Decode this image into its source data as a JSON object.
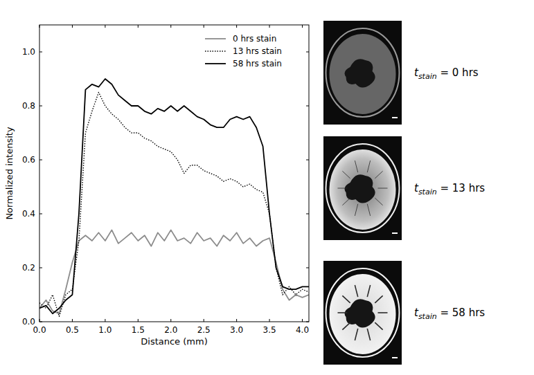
{
  "chart_data": {
    "type": "line",
    "x_label": "Distance (mm)",
    "y_label": "Normalized intensity",
    "x": [
      0.0,
      0.1,
      0.2,
      0.3,
      0.4,
      0.5,
      0.6,
      0.7,
      0.8,
      0.9,
      1.0,
      1.1,
      1.2,
      1.3,
      1.4,
      1.5,
      1.6,
      1.7,
      1.8,
      1.9,
      2.0,
      2.1,
      2.2,
      2.3,
      2.4,
      2.5,
      2.6,
      2.7,
      2.8,
      2.9,
      3.0,
      3.1,
      3.2,
      3.3,
      3.4,
      3.5,
      3.6,
      3.7,
      3.8,
      3.9,
      4.0,
      4.1
    ],
    "series": [
      {
        "name": "0 hrs stain",
        "color": "#8c8c8c",
        "line_style": "solid",
        "values": [
          0.05,
          0.08,
          0.04,
          0.03,
          0.12,
          0.22,
          0.3,
          0.32,
          0.3,
          0.33,
          0.3,
          0.34,
          0.29,
          0.31,
          0.33,
          0.3,
          0.32,
          0.28,
          0.33,
          0.3,
          0.34,
          0.3,
          0.31,
          0.29,
          0.33,
          0.3,
          0.31,
          0.28,
          0.32,
          0.3,
          0.33,
          0.29,
          0.31,
          0.28,
          0.3,
          0.31,
          0.22,
          0.12,
          0.08,
          0.1,
          0.09,
          0.1
        ]
      },
      {
        "name": "13 hrs stain",
        "color": "#000000",
        "line_style": "dotted",
        "values": [
          0.07,
          0.05,
          0.1,
          0.02,
          0.1,
          0.12,
          0.3,
          0.7,
          0.78,
          0.85,
          0.8,
          0.77,
          0.75,
          0.72,
          0.7,
          0.7,
          0.68,
          0.67,
          0.65,
          0.64,
          0.63,
          0.6,
          0.55,
          0.58,
          0.58,
          0.56,
          0.55,
          0.54,
          0.52,
          0.53,
          0.52,
          0.5,
          0.51,
          0.49,
          0.48,
          0.4,
          0.2,
          0.1,
          0.13,
          0.1,
          0.12,
          0.11
        ]
      },
      {
        "name": "58 hrs stain",
        "color": "#000000",
        "line_style": "solid",
        "values": [
          0.05,
          0.06,
          0.03,
          0.05,
          0.08,
          0.1,
          0.4,
          0.86,
          0.88,
          0.87,
          0.9,
          0.88,
          0.84,
          0.82,
          0.8,
          0.8,
          0.78,
          0.77,
          0.79,
          0.78,
          0.8,
          0.78,
          0.8,
          0.78,
          0.76,
          0.75,
          0.73,
          0.72,
          0.72,
          0.75,
          0.76,
          0.75,
          0.76,
          0.72,
          0.65,
          0.4,
          0.2,
          0.13,
          0.12,
          0.12,
          0.13,
          0.13
        ]
      }
    ],
    "xlim": [
      0,
      4.1
    ],
    "ylim": [
      0,
      1.1
    ],
    "xticks": [
      {
        "value": 0,
        "label": "0.0"
      },
      {
        "value": 0.5,
        "label": "0.5"
      },
      {
        "value": 1,
        "label": "1.0"
      },
      {
        "value": 1.5,
        "label": "1.5"
      },
      {
        "value": 2,
        "label": "2.0"
      },
      {
        "value": 2.5,
        "label": "2.5"
      },
      {
        "value": 3,
        "label": "3.0"
      },
      {
        "value": 3.5,
        "label": "3.5"
      },
      {
        "value": 4,
        "label": "4.0"
      }
    ],
    "yticks": [
      {
        "value": 0,
        "label": "0.0"
      },
      {
        "value": 0.2,
        "label": "0.2"
      },
      {
        "value": 0.4,
        "label": "0.4"
      },
      {
        "value": 0.6,
        "label": "0.6"
      },
      {
        "value": 0.8,
        "label": "0.8"
      },
      {
        "value": 1,
        "label": "1.0"
      }
    ],
    "legend": "upper right",
    "grid": false
  },
  "images": [
    {
      "symbol": "t",
      "subscript": "stain",
      "text": " = 0 hrs"
    },
    {
      "symbol": "t",
      "subscript": "stain",
      "text": " = 13 hrs"
    },
    {
      "symbol": "t",
      "subscript": "stain",
      "text": " = 58 hrs"
    }
  ]
}
